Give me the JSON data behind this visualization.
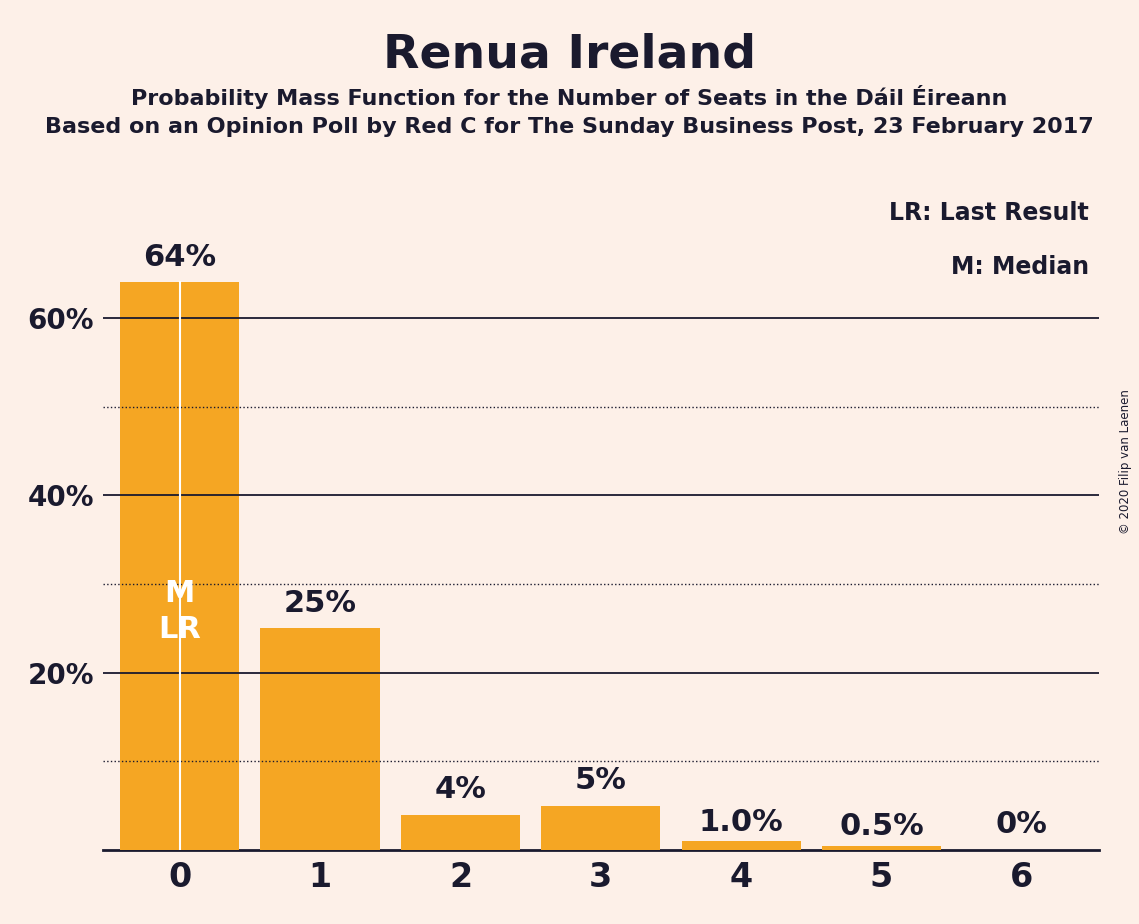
{
  "title": "Renua Ireland",
  "subtitle1": "Probability Mass Function for the Number of Seats in the Dáil Éireann",
  "subtitle2": "Based on an Opinion Poll by Red C for The Sunday Business Post, 23 February 2017",
  "copyright": "© 2020 Filip van Laenen",
  "categories": [
    0,
    1,
    2,
    3,
    4,
    5,
    6
  ],
  "values": [
    64,
    25,
    4,
    5,
    1.0,
    0.5,
    0
  ],
  "bar_labels": [
    "64%",
    "25%",
    "4%",
    "5%",
    "1.0%",
    "0.5%",
    "0%"
  ],
  "bar_color": "#F5A623",
  "background_color": "#FDF0E8",
  "text_color": "#1A1A2E",
  "yticks": [
    20,
    40,
    60
  ],
  "ytick_labels": [
    "20%",
    "40%",
    "60%"
  ],
  "ylim": [
    0,
    75
  ],
  "solid_gridlines": [
    20,
    40,
    60
  ],
  "dotted_gridlines": [
    10,
    30,
    50
  ],
  "legend_lr": "LR: Last Result",
  "legend_m": "M: Median",
  "bar_annotation_M_LR": {
    "bar_index": 0,
    "text": "M\nLR",
    "color": "white"
  },
  "title_fontsize": 34,
  "subtitle_fontsize": 16,
  "tick_fontsize": 20,
  "legend_fontsize": 17,
  "annotation_fontsize": 22,
  "bar_label_fontsize": 22
}
